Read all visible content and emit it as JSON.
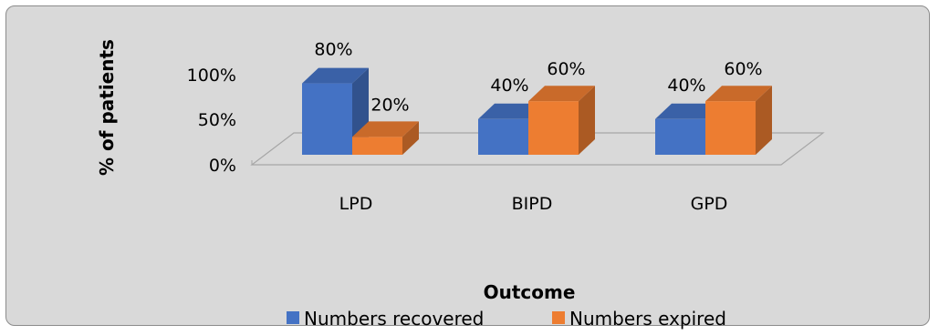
{
  "chart_data": {
    "type": "bar",
    "subtype": "3d-clustered-column",
    "categories": [
      "LPD",
      "BIPD",
      "GPD"
    ],
    "series": [
      {
        "name": "Numbers recovered",
        "values": [
          80,
          40,
          40
        ],
        "labels": [
          "80%",
          "40%",
          "40%"
        ],
        "color": "#4472c4"
      },
      {
        "name": "Numbers expired",
        "values": [
          20,
          60,
          60
        ],
        "labels": [
          "20%",
          "60%",
          "60%"
        ],
        "color": "#ed7d31"
      }
    ],
    "ylabel": "% of patients",
    "xlabel": "Outcome",
    "ylim": [
      0,
      100
    ],
    "yticks": [
      "0%",
      "50%",
      "100%"
    ],
    "legend": "bottom",
    "grid": false,
    "background": "#d9d9d9"
  }
}
